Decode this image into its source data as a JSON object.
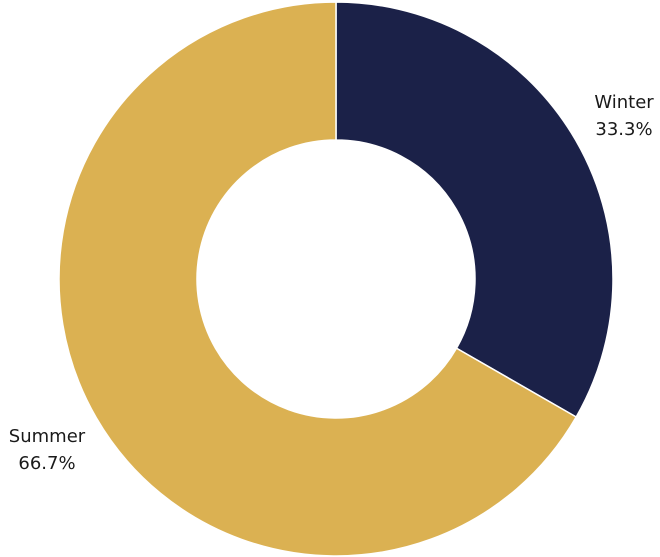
{
  "chart_data": {
    "type": "pie",
    "donut": true,
    "slices": [
      {
        "label": "Winter",
        "value": 33.3,
        "value_label": "33.3%",
        "color": "#1b2148"
      },
      {
        "label": "Summer",
        "value": 66.7,
        "value_label": "66.7%",
        "color": "#dbb152"
      }
    ]
  }
}
